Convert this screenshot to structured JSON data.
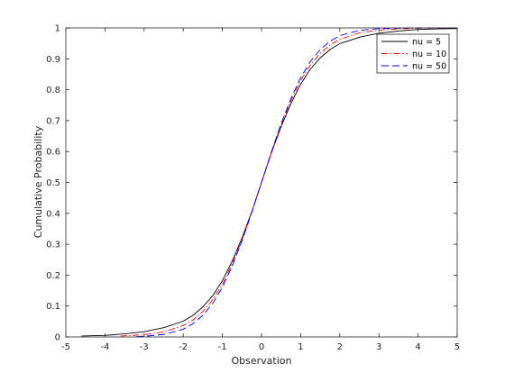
{
  "chart_data": {
    "type": "line",
    "title": "",
    "xlabel": "Observation",
    "ylabel": "Cumulative Probability",
    "xlim": [
      -5,
      5
    ],
    "ylim": [
      0,
      1
    ],
    "xticks": [
      -5,
      -4,
      -3,
      -2,
      -1,
      0,
      1,
      2,
      3,
      4,
      5
    ],
    "xtick_labels": [
      "-5",
      "-4",
      "-3",
      "-2",
      "-1",
      "0",
      "1",
      "2",
      "3",
      "4",
      "5"
    ],
    "yticks": [
      0,
      0.1,
      0.2,
      0.3,
      0.4,
      0.5,
      0.6,
      0.7,
      0.8,
      0.9,
      1
    ],
    "ytick_labels": [
      "0",
      "0.1",
      "0.2",
      "0.3",
      "0.4",
      "0.5",
      "0.6",
      "0.7",
      "0.8",
      "0.9",
      "1"
    ],
    "grid": false,
    "legend_position": "top-right",
    "series": [
      {
        "name": "nu = 5",
        "color": "#000000",
        "line_style": "solid",
        "x": [
          -4.6,
          -4.0,
          -3.5,
          -3.0,
          -2.5,
          -2.0,
          -1.75,
          -1.5,
          -1.25,
          -1.0,
          -0.75,
          -0.5,
          -0.25,
          0.0,
          0.25,
          0.5,
          0.75,
          1.0,
          1.25,
          1.5,
          1.75,
          2.0,
          2.5,
          3.0,
          3.5,
          4.0,
          4.5,
          5.0
        ],
        "y": [
          0.003,
          0.005,
          0.01,
          0.017,
          0.03,
          0.051,
          0.07,
          0.097,
          0.133,
          0.182,
          0.245,
          0.32,
          0.405,
          0.5,
          0.595,
          0.68,
          0.755,
          0.818,
          0.867,
          0.903,
          0.93,
          0.949,
          0.97,
          0.983,
          0.99,
          0.995,
          0.997,
          0.998
        ]
      },
      {
        "name": "nu = 10",
        "color": "#ff0000",
        "line_style": "dash-dot",
        "x": [
          -3.6,
          -3.0,
          -2.5,
          -2.0,
          -1.75,
          -1.5,
          -1.25,
          -1.0,
          -0.75,
          -0.5,
          -0.25,
          0.0,
          0.25,
          0.5,
          0.75,
          1.0,
          1.25,
          1.5,
          1.75,
          2.0,
          2.5,
          3.0,
          3.5,
          4.0,
          5.0
        ],
        "y": [
          0.003,
          0.007,
          0.016,
          0.037,
          0.055,
          0.082,
          0.12,
          0.17,
          0.236,
          0.314,
          0.404,
          0.5,
          0.596,
          0.686,
          0.764,
          0.83,
          0.88,
          0.918,
          0.945,
          0.963,
          0.984,
          0.993,
          0.997,
          0.999,
          1.0
        ]
      },
      {
        "name": "nu = 50",
        "color": "#0000ff",
        "line_style": "dashed",
        "x": [
          -3.2,
          -3.0,
          -2.5,
          -2.0,
          -1.75,
          -1.5,
          -1.25,
          -1.0,
          -0.75,
          -0.5,
          -0.25,
          0.0,
          0.25,
          0.5,
          0.75,
          1.0,
          1.25,
          1.5,
          1.75,
          2.0,
          2.5,
          3.0,
          3.5,
          4.0,
          5.0
        ],
        "y": [
          0.001,
          0.002,
          0.008,
          0.025,
          0.043,
          0.07,
          0.108,
          0.161,
          0.229,
          0.31,
          0.402,
          0.5,
          0.598,
          0.69,
          0.771,
          0.839,
          0.892,
          0.93,
          0.957,
          0.975,
          0.992,
          0.998,
          0.999,
          1.0,
          1.0
        ]
      }
    ]
  }
}
